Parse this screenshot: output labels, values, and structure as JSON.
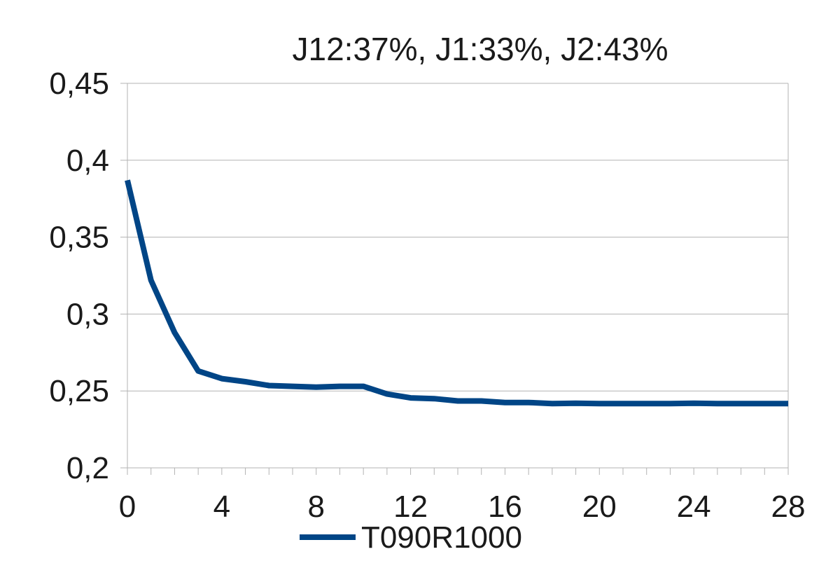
{
  "chart_data": {
    "type": "line",
    "title": "J12:37%, J1:33%, J2:43%",
    "xlabel": "",
    "ylabel": "",
    "xlim": [
      0,
      28
    ],
    "ylim": [
      0.2,
      0.45
    ],
    "x_ticks": [
      0,
      4,
      8,
      12,
      16,
      20,
      24,
      28
    ],
    "x_tick_labels": [
      "0",
      "4",
      "8",
      "12",
      "16",
      "20",
      "24",
      "28"
    ],
    "y_ticks": [
      0.2,
      0.25,
      0.3,
      0.35,
      0.4,
      0.45
    ],
    "y_tick_labels": [
      "0,2",
      "0,25",
      "0,3",
      "0,35",
      "0,4",
      "0,45"
    ],
    "grid": "horizontal",
    "legend_position": "bottom",
    "series": [
      {
        "name": "T090R1000",
        "color": "#004586",
        "x": [
          0,
          1,
          2,
          3,
          4,
          5,
          6,
          7,
          8,
          9,
          10,
          11,
          12,
          13,
          14,
          15,
          16,
          17,
          18,
          19,
          20,
          21,
          22,
          23,
          24,
          25,
          26,
          27,
          28
        ],
        "values": [
          0.387,
          0.322,
          0.288,
          0.263,
          0.258,
          0.256,
          0.2535,
          0.253,
          0.2525,
          0.253,
          0.253,
          0.248,
          0.2455,
          0.245,
          0.2435,
          0.2435,
          0.2425,
          0.2425,
          0.2418,
          0.242,
          0.2418,
          0.2418,
          0.2418,
          0.2418,
          0.242,
          0.2418,
          0.2418,
          0.2418,
          0.2418
        ]
      }
    ]
  }
}
